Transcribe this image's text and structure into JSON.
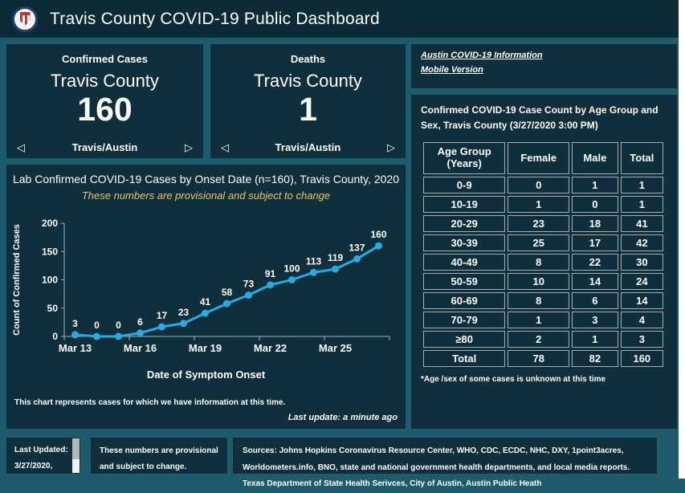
{
  "colors": {
    "page_bg": "#1d5b6d",
    "panel_bg": "#0e2f3b",
    "accent_yellow": "#e9c36b",
    "line_blue": "#29abe2",
    "axis_gray": "#9fb3bb"
  },
  "header": {
    "title": "Travis County COVID-19 Public Dashboard",
    "logo": "travis-county-seal"
  },
  "cards": [
    {
      "title": "Confirmed Cases",
      "subtitle": "Travis County",
      "value": "160",
      "footer": "Travis/Austin",
      "prev": "◁",
      "next": "▷"
    },
    {
      "title": "Deaths",
      "subtitle": "Travis County",
      "value": "1",
      "footer": "Travis/Austin",
      "prev": "◁",
      "next": "▷"
    }
  ],
  "links": [
    {
      "label": "Austin COVID-19 Information"
    },
    {
      "label": "Mobile Version"
    }
  ],
  "age_table": {
    "title": "Confirmed COVID-19 Case Count by Age Group and Sex, Travis County (3/27/2020 3:00 PM)",
    "columns": [
      "Age Group (Years)",
      "Female",
      "Male",
      "Total"
    ],
    "rows": [
      [
        "0-9",
        "0",
        "1",
        "1"
      ],
      [
        "10-19",
        "1",
        "0",
        "1"
      ],
      [
        "20-29",
        "23",
        "18",
        "41"
      ],
      [
        "30-39",
        "25",
        "17",
        "42"
      ],
      [
        "40-49",
        "8",
        "22",
        "30"
      ],
      [
        "50-59",
        "10",
        "14",
        "24"
      ],
      [
        "60-69",
        "8",
        "6",
        "14"
      ],
      [
        "70-79",
        "1",
        "3",
        "4"
      ],
      [
        "≥80",
        "2",
        "1",
        "3"
      ],
      [
        "Total",
        "78",
        "82",
        "160"
      ]
    ],
    "footnote": "*Age /sex of some cases is unknown at this time"
  },
  "chart": {
    "title": "Lab Confirmed COVID-19 Cases by Onset Date (n=160), Travis County, 2020",
    "subtitle": "These numbers are provisional and subject to change",
    "note": "This chart represents cases for which we have information at this time.",
    "last_update": "Last update: a minute ago"
  },
  "chart_data": {
    "type": "line",
    "x": [
      "Mar 13",
      "Mar 14",
      "Mar 15",
      "Mar 16",
      "Mar 17",
      "Mar 18",
      "Mar 19",
      "Mar 20",
      "Mar 21",
      "Mar 22",
      "Mar 23",
      "Mar 24",
      "Mar 25",
      "Mar 26",
      "Mar 27"
    ],
    "values": [
      3,
      0,
      0,
      6,
      17,
      23,
      41,
      58,
      73,
      91,
      100,
      113,
      119,
      137,
      160
    ],
    "title": "Lab Confirmed COVID-19 Cases by Onset Date (n=160), Travis County, 2020",
    "xlabel": "Date of Symptom Onset",
    "ylabel": "Count of Confirmed Cases",
    "ylim": [
      0,
      200
    ],
    "yticks": [
      0,
      50,
      100,
      150,
      200
    ],
    "xtick_labels": [
      "Mar 13",
      "Mar 16",
      "Mar 19",
      "Mar 22",
      "Mar 25"
    ],
    "legend": false,
    "grid": false,
    "line_color": "#29abe2",
    "data_labels": true
  },
  "footer": {
    "last_updated_label": "Last Updated:",
    "last_updated_date": "3/27/2020,",
    "provisional": "These numbers are provisional and subject to change.",
    "sources": "Sources: Johns Hopkins Coronavirus Resource Center, WHO, CDC, ECDC, NHC, DXY, 1point3acres, Worldometers.info, BNO, state and national government health departments, and local media reports. Texas Department of State Health Serivces, City of Austin, Austin Public Heath"
  }
}
